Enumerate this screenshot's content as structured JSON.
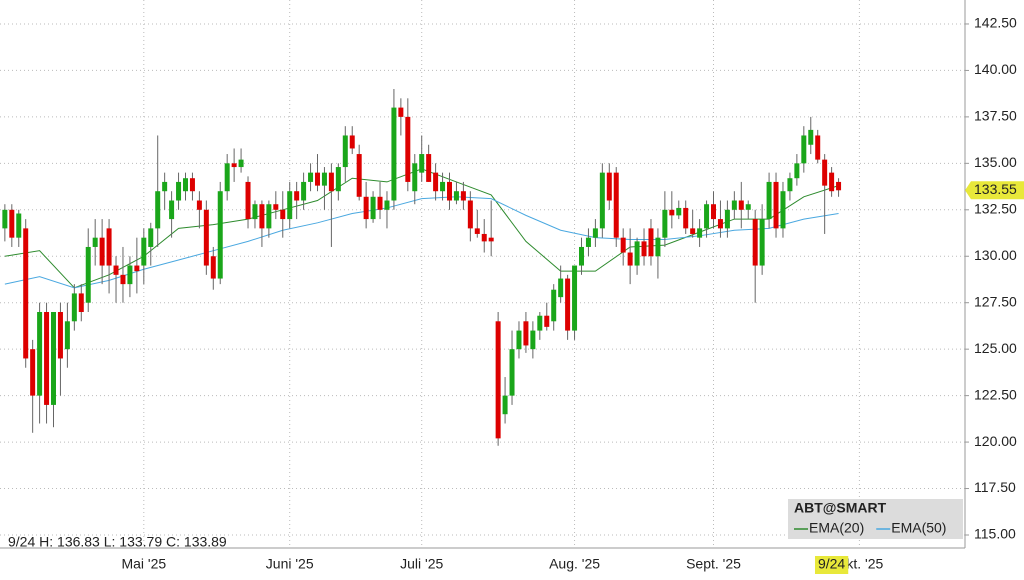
{
  "chart_data": {
    "type": "candlestick",
    "symbol": "ABT@SMART",
    "info": "9/24 H: 136.83 L: 133.79 C: 133.89",
    "crosshair_date": "9/24",
    "last_price": 133.55,
    "up_color": "#1aa61a",
    "down_color": "#dd0000",
    "xlim": [
      -0.7,
      138.2
    ],
    "xticks": [
      {
        "value": 20,
        "label": "Mai '25"
      },
      {
        "value": 41,
        "label": "Juni '25"
      },
      {
        "value": 60,
        "label": "Juli '25"
      },
      {
        "value": 82,
        "label": "Aug. '25"
      },
      {
        "value": 102,
        "label": "Sept. '25"
      },
      {
        "value": 123,
        "label": "Okt. '25"
      }
    ],
    "ylim": [
      114.3,
      143.79
    ],
    "yticks": [
      {
        "value": 115,
        "label": "115.00"
      },
      {
        "value": 117.5,
        "label": "117.50"
      },
      {
        "value": 120,
        "label": "120.00"
      },
      {
        "value": 122.5,
        "label": "122.50"
      },
      {
        "value": 125,
        "label": "125.00"
      },
      {
        "value": 127.5,
        "label": "127.50"
      },
      {
        "value": 130,
        "label": "130.00"
      },
      {
        "value": 132.5,
        "label": "132.50"
      },
      {
        "value": 135,
        "label": "135.00"
      },
      {
        "value": 137.5,
        "label": "137.50"
      },
      {
        "value": 140,
        "label": "140.00"
      },
      {
        "value": 142.5,
        "label": "142.50"
      }
    ],
    "grid": true,
    "candles": [
      [
        131.5,
        132.8,
        130.8,
        132.5
      ],
      [
        132.5,
        132.8,
        130.5,
        131
      ],
      [
        131,
        132.5,
        130.5,
        132.3
      ],
      [
        131.5,
        132,
        124,
        124.5
      ],
      [
        125,
        125.5,
        120.5,
        122.5
      ],
      [
        122.5,
        127.5,
        121,
        127
      ],
      [
        127,
        127.5,
        121,
        122
      ],
      [
        122,
        127,
        120.8,
        127
      ],
      [
        127,
        127.5,
        122.5,
        124.5
      ],
      [
        125,
        127.5,
        124,
        126.5
      ],
      [
        126.5,
        128.5,
        126,
        128
      ],
      [
        128,
        128.5,
        126.5,
        127
      ],
      [
        127.5,
        131.5,
        127,
        130.5
      ],
      [
        130.5,
        132,
        129.5,
        131
      ],
      [
        131,
        132,
        128.5,
        129.5
      ],
      [
        131.5,
        132,
        128,
        129.5
      ],
      [
        129.5,
        130,
        127.5,
        129
      ],
      [
        129,
        130.5,
        127.5,
        128.5
      ],
      [
        128.5,
        130,
        127.8,
        129.5
      ],
      [
        129.5,
        131,
        128,
        129.2
      ],
      [
        129.5,
        131.5,
        128.5,
        131
      ],
      [
        130.5,
        131.8,
        129.5,
        131.5
      ],
      [
        131.5,
        136.5,
        130.5,
        133.5
      ],
      [
        133.5,
        134.5,
        132.5,
        134
      ],
      [
        132,
        133.5,
        131,
        133
      ],
      [
        133,
        134.5,
        132.5,
        134
      ],
      [
        133.5,
        134.5,
        133,
        134.2
      ],
      [
        134.2,
        134.5,
        133,
        133.5
      ],
      [
        133,
        133.5,
        131.5,
        132.5
      ],
      [
        132.5,
        133,
        129,
        129.5
      ],
      [
        130,
        130.5,
        128.2,
        128.8
      ],
      [
        128.8,
        134,
        128.5,
        133.5
      ],
      [
        133.5,
        135.5,
        133,
        135
      ],
      [
        135,
        135.8,
        134,
        134.8
      ],
      [
        134.8,
        135.8,
        134.5,
        135.2
      ],
      [
        134,
        134.3,
        131.5,
        132
      ],
      [
        132,
        133,
        131.5,
        132.8
      ],
      [
        132.8,
        133,
        130.5,
        131.5
      ],
      [
        131.5,
        133,
        131,
        132.8
      ],
      [
        132.8,
        133.5,
        132,
        132.5
      ],
      [
        132.5,
        133.5,
        131,
        132
      ],
      [
        132,
        134,
        131.5,
        133.5
      ],
      [
        133.5,
        134,
        132,
        133
      ],
      [
        133,
        134.5,
        132.5,
        134
      ],
      [
        134,
        135,
        133.5,
        134.5
      ],
      [
        134.5,
        135.5,
        133.5,
        133.8
      ],
      [
        133.8,
        134.8,
        132.5,
        134.5
      ],
      [
        134.5,
        135,
        130.5,
        133.5
      ],
      [
        133.5,
        135,
        133,
        134.8
      ],
      [
        134.8,
        137,
        134,
        136.5
      ],
      [
        136.5,
        137,
        135.5,
        135.8
      ],
      [
        135.5,
        136,
        133,
        133.2
      ],
      [
        133.2,
        134,
        131.5,
        132
      ],
      [
        132,
        133.5,
        131.8,
        133.2
      ],
      [
        133.2,
        134,
        132,
        132.5
      ],
      [
        132.5,
        133.5,
        131.5,
        133
      ],
      [
        133,
        139,
        132.5,
        138
      ],
      [
        138,
        138.5,
        136.5,
        137.5
      ],
      [
        137.5,
        138.5,
        133.5,
        134
      ],
      [
        133.5,
        135.5,
        132.8,
        135
      ],
      [
        134.5,
        136.5,
        134,
        135.5
      ],
      [
        135.5,
        136,
        134,
        134
      ],
      [
        134.5,
        135,
        133,
        133.5
      ],
      [
        133.5,
        134.5,
        133,
        134
      ],
      [
        134,
        134.5,
        132.5,
        133
      ],
      [
        133,
        134,
        132.8,
        133.5
      ],
      [
        133.5,
        134,
        132.5,
        133
      ],
      [
        133,
        133.5,
        130.8,
        131.5
      ],
      [
        131.5,
        132.5,
        131,
        131.2
      ],
      [
        131.2,
        132,
        130.2,
        130.8
      ],
      [
        131,
        133,
        130,
        130.8
      ],
      [
        126.5,
        127,
        119.8,
        120.2
      ],
      [
        121.5,
        123.5,
        121,
        122.5
      ],
      [
        122.5,
        126,
        122,
        125
      ],
      [
        125,
        126.5,
        124.5,
        126
      ],
      [
        126.5,
        127,
        124.8,
        125.2
      ],
      [
        125,
        126.5,
        124.5,
        126
      ],
      [
        126,
        127,
        125.5,
        126.8
      ],
      [
        126.8,
        127.5,
        126,
        126.2
      ],
      [
        126.5,
        128.5,
        126,
        128.2
      ],
      [
        127.8,
        129.5,
        127.5,
        128.8
      ],
      [
        128.8,
        129,
        125.5,
        126
      ],
      [
        126,
        129.5,
        125.5,
        129.5
      ],
      [
        129.5,
        131,
        129,
        130.5
      ],
      [
        130.5,
        131.5,
        130,
        131
      ],
      [
        131,
        132,
        130.5,
        131.5
      ],
      [
        131.5,
        135,
        131,
        134.5
      ],
      [
        134.5,
        135,
        132.5,
        133
      ],
      [
        134.5,
        134.8,
        130.5,
        131
      ],
      [
        131,
        131.5,
        129.5,
        130.2
      ],
      [
        130.2,
        131.5,
        128.5,
        129.5
      ],
      [
        129.5,
        131,
        129,
        130.8
      ],
      [
        130.8,
        131.5,
        129.5,
        130
      ],
      [
        131.5,
        132,
        129.5,
        130
      ],
      [
        130,
        131.5,
        128.8,
        131
      ],
      [
        131,
        133.5,
        130.5,
        132.5
      ],
      [
        132.5,
        133.5,
        131.5,
        132.2
      ],
      [
        132.2,
        133,
        132,
        132.6
      ],
      [
        132.6,
        133,
        131.2,
        131.5
      ],
      [
        131.5,
        132.5,
        131,
        131.2
      ],
      [
        131,
        132,
        130.5,
        131.5
      ],
      [
        131.5,
        133,
        131,
        132.8
      ],
      [
        132.8,
        133.5,
        131.5,
        132
      ],
      [
        132,
        133,
        131,
        131.5
      ],
      [
        131.5,
        133,
        131,
        132.5
      ],
      [
        132.5,
        133.5,
        132,
        133
      ],
      [
        133,
        134,
        131.5,
        132.5
      ],
      [
        132.5,
        133,
        132,
        132.8
      ],
      [
        132,
        132.5,
        127.5,
        129.5
      ],
      [
        129.5,
        132.8,
        129,
        132
      ],
      [
        132,
        134.5,
        131.5,
        134
      ],
      [
        134,
        134.5,
        131,
        131.5
      ],
      [
        131.5,
        134,
        131,
        133.5
      ],
      [
        133.5,
        134.5,
        133,
        134.2
      ],
      [
        134.2,
        135.5,
        133.8,
        135
      ],
      [
        135,
        137,
        134.5,
        136.5
      ],
      [
        136,
        137.5,
        135.5,
        136.8
      ],
      [
        136.5,
        136.8,
        135,
        135.2
      ],
      [
        135.2,
        135.5,
        131.2,
        133.8
      ],
      [
        134.5,
        134.8,
        133.2,
        133.5
      ],
      [
        134,
        134.2,
        133.2,
        133.55
      ]
    ],
    "series": [
      {
        "name": "EMA(20)",
        "color": "#2e8b2e",
        "x": [
          0,
          5,
          10,
          15,
          20,
          25,
          30,
          35,
          40,
          45,
          50,
          55,
          60,
          65,
          70,
          75,
          80,
          85,
          90,
          95,
          100,
          105,
          110,
          115,
          120
        ],
        "values": [
          130,
          130.3,
          128.3,
          129,
          130,
          131.5,
          131.7,
          132,
          132.5,
          133,
          134.2,
          134,
          134.7,
          134,
          133.3,
          130.8,
          129.2,
          129.2,
          130.5,
          130.6,
          131.3,
          132,
          132,
          133.2,
          133.8
        ]
      },
      {
        "name": "EMA(50)",
        "color": "#4aa8e0",
        "x": [
          0,
          5,
          10,
          15,
          20,
          25,
          30,
          35,
          40,
          45,
          50,
          55,
          60,
          65,
          70,
          75,
          80,
          85,
          90,
          95,
          100,
          105,
          110,
          115,
          120
        ],
        "values": [
          128.5,
          128.9,
          128.3,
          128.7,
          129.3,
          129.8,
          130.3,
          130.8,
          131.4,
          131.8,
          132.3,
          132.6,
          133.1,
          133.2,
          133.1,
          132.2,
          131.4,
          131,
          130.9,
          130.9,
          131.1,
          131.4,
          131.5,
          132,
          132.3
        ]
      }
    ]
  }
}
